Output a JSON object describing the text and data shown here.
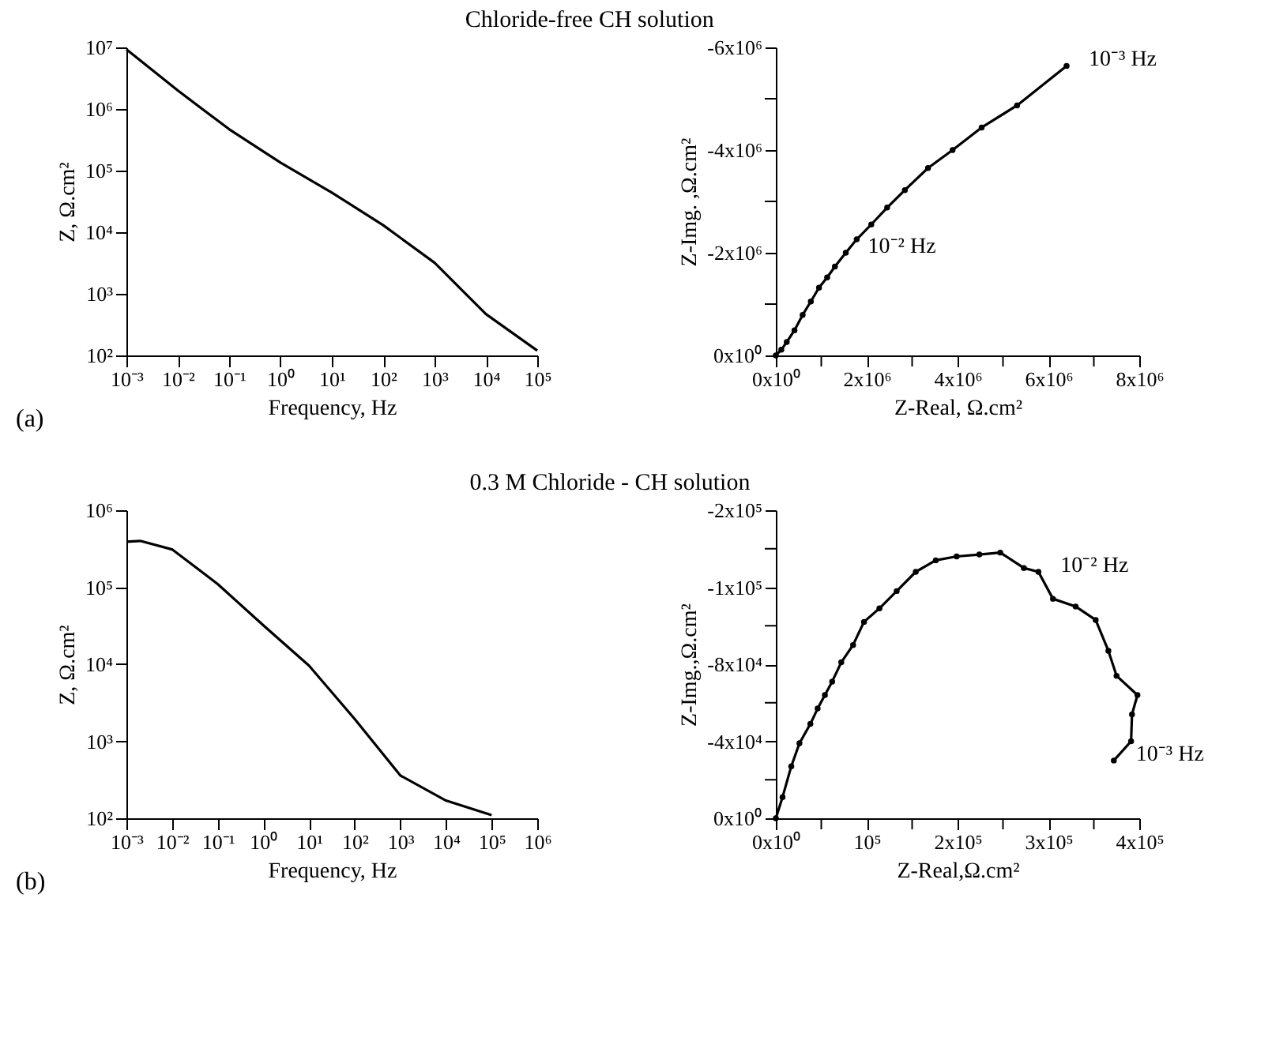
{
  "chart_data": [
    {
      "type": "line",
      "title": "Chloride-free CH solution",
      "xlabel": "Frequency, Hz",
      "ylabel": "Z, Ω.cm²",
      "annotations": [
        "(a)"
      ],
      "log": "xy",
      "grid": false,
      "marker": "none",
      "line_style": "solid",
      "xlim": [
        0.001,
        100000
      ],
      "ylim": [
        100,
        10000000
      ],
      "xticks": [
        {
          "value": 0.001,
          "label": "10⁻³"
        },
        {
          "value": 0.01,
          "label": "10⁻²"
        },
        {
          "value": 0.1,
          "label": "10⁻¹"
        },
        {
          "value": 1,
          "label": "10⁰"
        },
        {
          "value": 10,
          "label": "10¹"
        },
        {
          "value": 100,
          "label": "10²"
        },
        {
          "value": 1000,
          "label": "10³"
        },
        {
          "value": 10000,
          "label": "10⁴"
        },
        {
          "value": 100000,
          "label": "10⁵"
        }
      ],
      "yticks": [
        {
          "value": 100,
          "label": "10²"
        },
        {
          "value": 1000,
          "label": "10³"
        },
        {
          "value": 10000,
          "label": "10⁴"
        },
        {
          "value": 100000,
          "label": "10⁵"
        },
        {
          "value": 1000000,
          "label": "10⁶"
        },
        {
          "value": 10000000,
          "label": "10⁷"
        }
      ],
      "series": [
        {
          "color": "#000000",
          "x": [
            0.001,
            0.01,
            0.1,
            1,
            10,
            100,
            1000,
            10000,
            100000
          ],
          "values": [
            9300000,
            2000000,
            470000,
            135000,
            44000,
            13000,
            3200,
            470,
            120
          ]
        }
      ]
    },
    {
      "type": "line",
      "ylabel": "Z-Img. ,Ω.cm²",
      "xlabel": "Z-Real, Ω.cm²",
      "grid": false,
      "marker": "circle",
      "line_style": "solid",
      "xlim": [
        0,
        8000000
      ],
      "ylim": [
        0,
        -6000000
      ],
      "xticks": [
        {
          "value": 0,
          "label": "0x10⁰"
        },
        {
          "value": 1000000,
          "label": null
        },
        {
          "value": 2000000,
          "label": "2x10⁶"
        },
        {
          "value": 3000000,
          "label": null
        },
        {
          "value": 4000000,
          "label": "4x10⁶"
        },
        {
          "value": 5000000,
          "label": null
        },
        {
          "value": 6000000,
          "label": "6x10⁶"
        },
        {
          "value": 7000000,
          "label": null
        },
        {
          "value": 8000000,
          "label": "8x10⁶"
        }
      ],
      "yticks": [
        {
          "value": 0,
          "label": "0x10⁰"
        },
        {
          "value": -1000000,
          "label": null
        },
        {
          "value": -2000000,
          "label": "-2x10⁶"
        },
        {
          "value": -3000000,
          "label": null
        },
        {
          "value": -4000000,
          "label": "-4x10⁶"
        },
        {
          "value": -5000000,
          "label": null
        },
        {
          "value": -6000000,
          "label": "-6x10⁶"
        }
      ],
      "annotations": [
        {
          "text": "10⁻³ Hz",
          "x": 6400000,
          "y": -5640000
        },
        {
          "text": "10⁻² Hz",
          "x": 1540000,
          "y": -2000000
        }
      ],
      "series": [
        {
          "color": "#000000",
          "x": [
            0,
            120000,
            240000,
            410000,
            590000,
            770000,
            950000,
            1130000,
            1300000,
            1540000,
            1780000,
            2100000,
            2450000,
            2840000,
            3350000,
            3890000,
            4530000,
            5310000,
            6400000
          ],
          "values": [
            0,
            -110000,
            -260000,
            -490000,
            -790000,
            -1050000,
            -1320000,
            -1520000,
            -1730000,
            -2000000,
            -2260000,
            -2550000,
            -2880000,
            -3220000,
            -3650000,
            -4000000,
            -4440000,
            -4870000,
            -5640000
          ]
        }
      ]
    },
    {
      "type": "line",
      "title": "0.3 M Chloride - CH solution",
      "xlabel": "Frequency, Hz",
      "ylabel": "Z, Ω.cm²",
      "annotations": [
        "(b)"
      ],
      "log": "xy",
      "grid": false,
      "marker": "none",
      "line_style": "solid",
      "xlim": [
        0.001,
        1000000
      ],
      "ylim": [
        100,
        1000000
      ],
      "xticks": [
        {
          "value": 0.001,
          "label": "10⁻³"
        },
        {
          "value": 0.01,
          "label": "10⁻²"
        },
        {
          "value": 0.1,
          "label": "10⁻¹"
        },
        {
          "value": 1,
          "label": "10⁰"
        },
        {
          "value": 10,
          "label": "10¹"
        },
        {
          "value": 100,
          "label": "10²"
        },
        {
          "value": 1000,
          "label": "10³"
        },
        {
          "value": 10000,
          "label": "10⁴"
        },
        {
          "value": 100000,
          "label": "10⁵"
        },
        {
          "value": 1000000,
          "label": "10⁶"
        }
      ],
      "yticks": [
        {
          "value": 100,
          "label": "10²"
        },
        {
          "value": 1000,
          "label": "10³"
        },
        {
          "value": 10000,
          "label": "10⁴"
        },
        {
          "value": 100000,
          "label": "10⁵"
        },
        {
          "value": 1000000,
          "label": "10⁶"
        }
      ],
      "series": [
        {
          "color": "#000000",
          "x": [
            0.001,
            0.002,
            0.01,
            0.1,
            1,
            10,
            100,
            1000,
            10000,
            100000
          ],
          "values": [
            390000,
            400000,
            310000,
            110000,
            32000,
            9600,
            1950,
            360,
            170,
            110
          ]
        }
      ]
    },
    {
      "type": "line",
      "ylabel": "Z-Img.,Ω.cm²",
      "xlabel": "Z-Real,Ω.cm²",
      "grid": false,
      "marker": "circle",
      "line_style": "solid",
      "xlim": [
        0,
        400000
      ],
      "ylim": [
        0,
        -160000
      ],
      "xticks": [
        {
          "value": 0,
          "label": "0x10⁰"
        },
        {
          "value": 50000,
          "label": null
        },
        {
          "value": 100000,
          "label": "10⁵"
        },
        {
          "value": 150000,
          "label": null
        },
        {
          "value": 200000,
          "label": "2x10⁵"
        },
        {
          "value": 250000,
          "label": null
        },
        {
          "value": 300000,
          "label": "3x10⁵"
        },
        {
          "value": 350000,
          "label": null
        },
        {
          "value": 400000,
          "label": "4x10⁵"
        }
      ],
      "yticks": [
        {
          "value": 0,
          "label": "0x10⁰"
        },
        {
          "value": -20000,
          "label": null
        },
        {
          "value": -40000,
          "label": "-4x10⁴"
        },
        {
          "value": -60000,
          "label": null
        },
        {
          "value": -80000,
          "label": "-8x10⁴"
        },
        {
          "value": -100000,
          "label": null
        },
        {
          "value": -120000,
          "label": "-1x10⁵"
        },
        {
          "value": -140000,
          "label": null
        },
        {
          "value": -160000,
          "label": "-2x10⁵"
        }
      ],
      "annotations": [
        {
          "text": "10⁻² Hz",
          "x": 289000,
          "y": -128000
        },
        {
          "text": "10⁻³ Hz",
          "x": 372000,
          "y": -30000
        }
      ],
      "series": [
        {
          "color": "#000000",
          "x": [
            0,
            7400,
            17000,
            26000,
            38000,
            46000,
            54000,
            62000,
            72000,
            85000,
            97000,
            114000,
            133000,
            154000,
            176000,
            199000,
            224000,
            247000,
            273000,
            289000,
            305000,
            330000,
            352000,
            366000,
            375000,
            398000,
            392000,
            391000,
            372000
          ],
          "values": [
            0,
            -11000,
            -27000,
            -39000,
            -49000,
            -57000,
            -64000,
            -71000,
            -81000,
            -90000,
            -102000,
            -109000,
            -118000,
            -128000,
            -134000,
            -136000,
            -137000,
            -138000,
            -130000,
            -128000,
            -114000,
            -110000,
            -103000,
            -87000,
            -74000,
            -64000,
            -54000,
            -40000,
            -30000
          ]
        }
      ]
    }
  ]
}
